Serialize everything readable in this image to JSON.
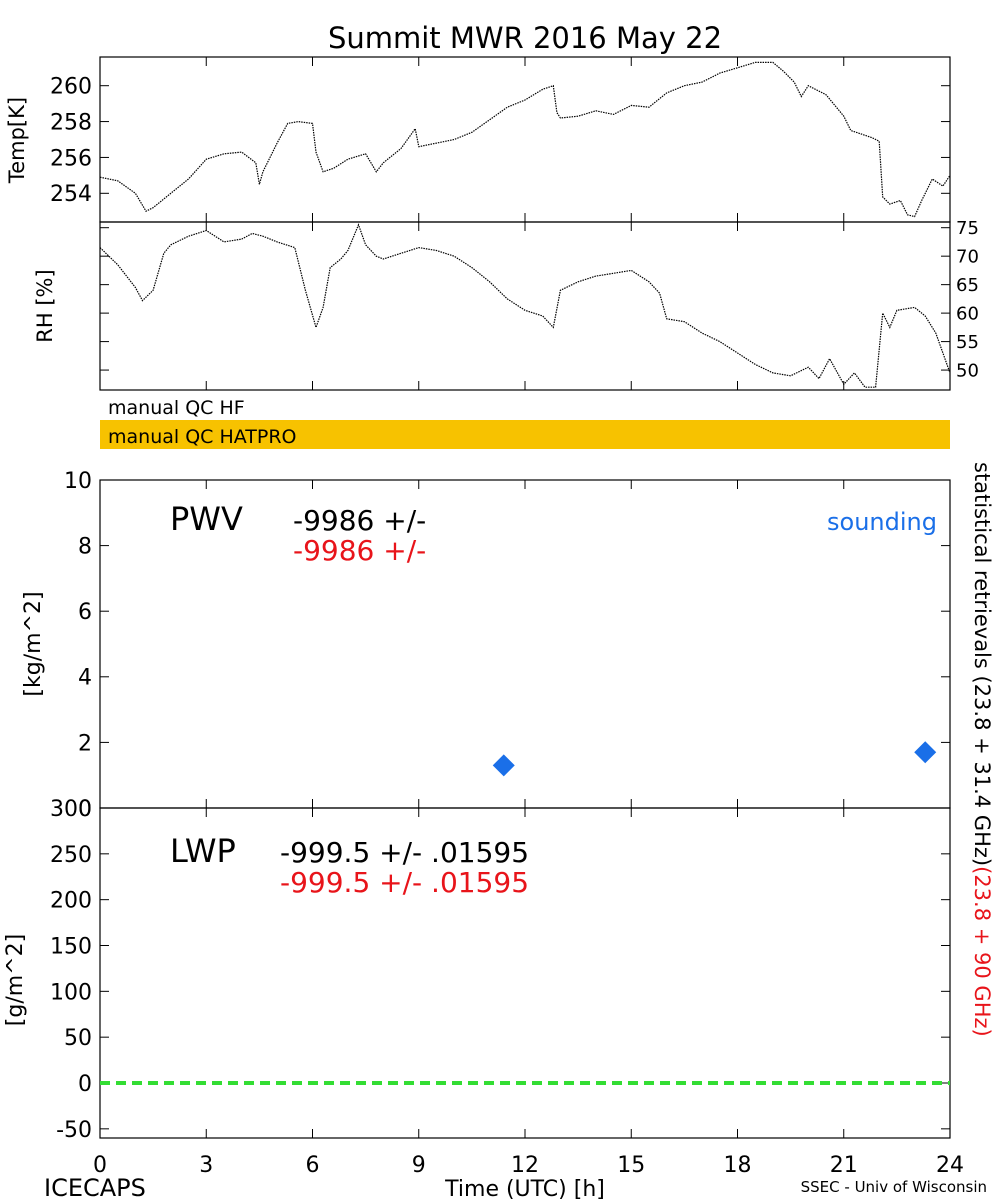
{
  "title": "Summit MWR 2016 May 22",
  "footer": {
    "left": "ICECAPS",
    "right": "SSEC - Univ of Wisconsin"
  },
  "colors": {
    "axis": "#000000",
    "series_primary": "#000000",
    "series_secondary": "#e8141a",
    "sounding": "#1a6fe8",
    "qc_band": "#f7c200",
    "zero_line": "#33dd33"
  },
  "qc": {
    "hf_label": "manual QC HF",
    "hatpro_label": "manual QC HATPRO"
  },
  "right_labels": {
    "black": "statistical retrievals (23.8 + 31.4 GHz)",
    "red": "(23.8 + 90 GHz)"
  },
  "chart_data": [
    {
      "id": "temp",
      "type": "line",
      "ylabel": "Temp[K]",
      "xlim": [
        0,
        24
      ],
      "ylim": [
        252.4,
        261.6
      ],
      "yticks": [
        254,
        256,
        258,
        260
      ],
      "ytick_labels": [
        "254",
        "256",
        "258",
        "260"
      ],
      "series": [
        {
          "x": [
            0.0,
            0.5,
            1.0,
            1.3,
            1.5,
            2.0,
            2.5,
            3.0,
            3.5,
            4.0,
            4.4,
            4.5,
            4.6,
            5.0,
            5.3,
            5.6,
            6.0,
            6.1,
            6.3,
            6.6,
            7.0,
            7.5,
            7.8,
            8.0,
            8.5,
            8.9,
            9.0,
            9.5,
            10.0,
            10.5,
            11.0,
            11.5,
            12.0,
            12.5,
            12.8,
            12.9,
            13.0,
            13.5,
            14.0,
            14.5,
            15.0,
            15.5,
            16.0,
            16.5,
            17.0,
            17.5,
            18.0,
            18.5,
            19.0,
            19.3,
            19.6,
            19.8,
            20.0,
            20.5,
            21.0,
            21.2,
            21.5,
            21.8,
            22.0,
            22.1,
            22.3,
            22.6,
            22.8,
            23.0,
            23.2,
            23.5,
            23.8,
            24.0
          ],
          "y": [
            254.9,
            254.7,
            254.0,
            253.0,
            253.2,
            254.0,
            254.8,
            255.9,
            256.2,
            256.3,
            255.7,
            254.5,
            255.2,
            256.8,
            257.9,
            258.0,
            257.9,
            256.3,
            255.2,
            255.4,
            255.9,
            256.2,
            255.2,
            255.7,
            256.5,
            257.6,
            256.6,
            256.8,
            257.0,
            257.4,
            258.1,
            258.8,
            259.2,
            259.8,
            260.0,
            258.5,
            258.2,
            258.3,
            258.6,
            258.4,
            258.9,
            258.8,
            259.6,
            260.0,
            260.2,
            260.7,
            261.0,
            261.3,
            261.3,
            260.8,
            260.2,
            259.4,
            260.0,
            259.5,
            258.3,
            257.5,
            257.3,
            257.1,
            256.9,
            253.8,
            253.4,
            253.6,
            252.8,
            252.7,
            253.6,
            254.8,
            254.4,
            255.0
          ]
        }
      ]
    },
    {
      "id": "rh",
      "type": "line",
      "ylabel": "RH [%]",
      "xlim": [
        0,
        24
      ],
      "ylim": [
        46.5,
        76
      ],
      "yticks": [
        50,
        55,
        60,
        65,
        70,
        75
      ],
      "ytick_labels": [
        "50",
        "55",
        "60",
        "65",
        "70",
        "75"
      ],
      "series": [
        {
          "x": [
            0.0,
            0.5,
            1.0,
            1.2,
            1.5,
            1.8,
            2.0,
            2.5,
            3.0,
            3.5,
            4.0,
            4.3,
            4.6,
            5.0,
            5.5,
            5.8,
            6.1,
            6.3,
            6.5,
            6.8,
            7.0,
            7.3,
            7.5,
            7.8,
            8.0,
            8.5,
            9.0,
            9.5,
            10.0,
            10.5,
            11.0,
            11.5,
            12.0,
            12.5,
            12.8,
            13.0,
            13.5,
            14.0,
            14.5,
            15.0,
            15.5,
            15.8,
            16.0,
            16.5,
            17.0,
            17.5,
            18.0,
            18.5,
            19.0,
            19.5,
            20.0,
            20.3,
            20.6,
            21.0,
            21.3,
            21.6,
            21.9,
            22.1,
            22.3,
            22.5,
            23.0,
            23.3,
            23.6,
            24.0
          ],
          "y": [
            71.5,
            68.5,
            64.5,
            62.2,
            64.0,
            70.5,
            72.0,
            73.5,
            74.5,
            72.5,
            73.0,
            74.0,
            73.5,
            72.5,
            71.5,
            64.0,
            57.5,
            61.0,
            68.0,
            69.5,
            71.0,
            75.5,
            72.0,
            70.0,
            69.5,
            70.5,
            71.5,
            71.0,
            70.0,
            68.0,
            65.5,
            62.5,
            60.5,
            59.5,
            57.5,
            64.0,
            65.5,
            66.5,
            67.0,
            67.5,
            65.5,
            63.5,
            59.0,
            58.5,
            56.5,
            55.0,
            53.0,
            51.0,
            49.5,
            49.0,
            50.5,
            48.5,
            52.0,
            47.5,
            49.5,
            47.0,
            47.0,
            60.0,
            57.5,
            60.5,
            61.0,
            59.5,
            56.5,
            49.5
          ]
        }
      ]
    },
    {
      "id": "pwv",
      "type": "scatter",
      "ylabel": "[kg/m^2]",
      "xlim": [
        0,
        24
      ],
      "ylim": [
        0,
        10
      ],
      "yticks": [
        0,
        2,
        4,
        6,
        8,
        10
      ],
      "ytick_labels": [
        "0",
        "2",
        "4",
        "6",
        "8",
        "10"
      ],
      "annotation": {
        "name": "PWV",
        "value_black": "-9986 +/-",
        "value_red": "-9986 +/-",
        "legend": "sounding"
      },
      "series": [
        {
          "name": "sounding",
          "marker": "diamond",
          "x": [
            11.4,
            23.3
          ],
          "y": [
            1.3,
            1.7
          ]
        }
      ]
    },
    {
      "id": "lwp",
      "type": "line",
      "ylabel": "[g/m^2]",
      "xlabel": "Time (UTC) [h]",
      "xlim": [
        0,
        24
      ],
      "ylim": [
        -60,
        300
      ],
      "yticks": [
        -50,
        0,
        50,
        100,
        150,
        200,
        250,
        300
      ],
      "ytick_labels": [
        "-50",
        "0",
        "50",
        "100",
        "150",
        "200",
        "250",
        "300"
      ],
      "xticks": [
        0,
        3,
        6,
        9,
        12,
        15,
        18,
        21,
        24
      ],
      "xtick_labels": [
        "0",
        "3",
        "6",
        "9",
        "12",
        "15",
        "18",
        "21",
        "24"
      ],
      "annotation": {
        "name": "LWP",
        "value_black": "-999.5 +/- .01595",
        "value_red": "-999.5 +/- .01595"
      },
      "series": [
        {
          "style": "dashed",
          "x": [
            0,
            24
          ],
          "y": [
            0,
            0
          ]
        }
      ]
    }
  ]
}
